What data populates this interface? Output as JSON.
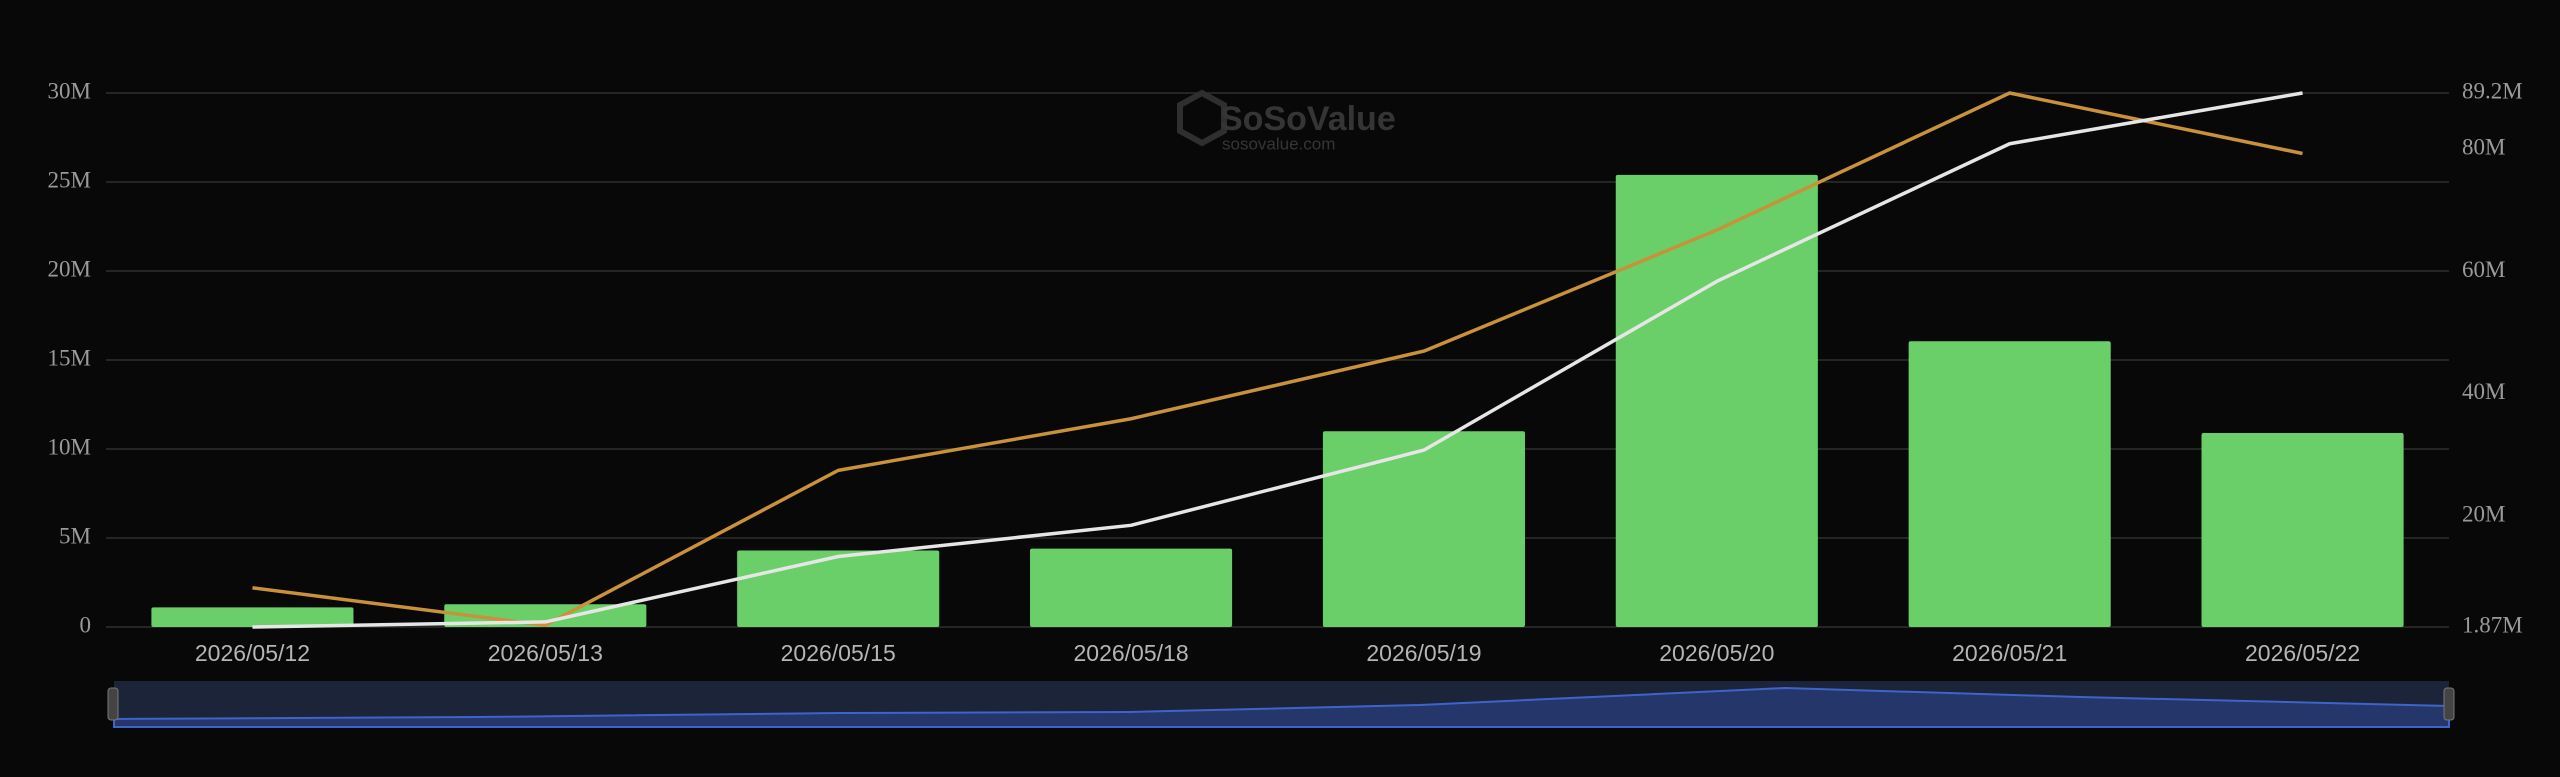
{
  "chart_data": {
    "type": "bar",
    "watermark": {
      "brand": "SoSoValue",
      "site": "sosovalue.com"
    },
    "categories": [
      "2026/05/12",
      "2026/05/13",
      "2026/05/15",
      "2026/05/18",
      "2026/05/19",
      "2026/05/20",
      "2026/05/21",
      "2026/05/22"
    ],
    "series": [
      {
        "type": "bar",
        "color": "#6acf68",
        "axis": "y",
        "values": [
          1100000,
          1280000,
          4300000,
          4400000,
          11000000,
          25400000,
          16050000,
          10900000
        ]
      },
      {
        "type": "line",
        "color": "#c8913a",
        "axis": "y",
        "values": [
          2200000,
          100000,
          8800000,
          11700000,
          15500000,
          22300000,
          30000000,
          26600000
        ]
      },
      {
        "type": "line",
        "color": "#e6e6e6",
        "axis": "y2",
        "values": [
          1870000,
          2700000,
          13400000,
          18500000,
          30800000,
          58400000,
          80900000,
          89200000
        ]
      }
    ],
    "ylim": [
      0,
      30000000
    ],
    "yticks": [
      {
        "value": 0,
        "label": "0"
      },
      {
        "value": 5000000,
        "label": "5M"
      },
      {
        "value": 10000000,
        "label": "10M"
      },
      {
        "value": 15000000,
        "label": "15M"
      },
      {
        "value": 20000000,
        "label": "20M"
      },
      {
        "value": 25000000,
        "label": "25M"
      },
      {
        "value": 30000000,
        "label": "30M"
      }
    ],
    "y2lim": [
      1870000,
      89200000
    ],
    "y2ticks": [
      {
        "value": 1870000,
        "label": "1.87M"
      },
      {
        "value": 20000000,
        "label": "20M"
      },
      {
        "value": 40000000,
        "label": "40M"
      },
      {
        "value": 60000000,
        "label": "60M"
      },
      {
        "value": 80000000,
        "label": "80M"
      },
      {
        "value": 89200000,
        "label": "89.2M"
      }
    ],
    "grid": true
  }
}
